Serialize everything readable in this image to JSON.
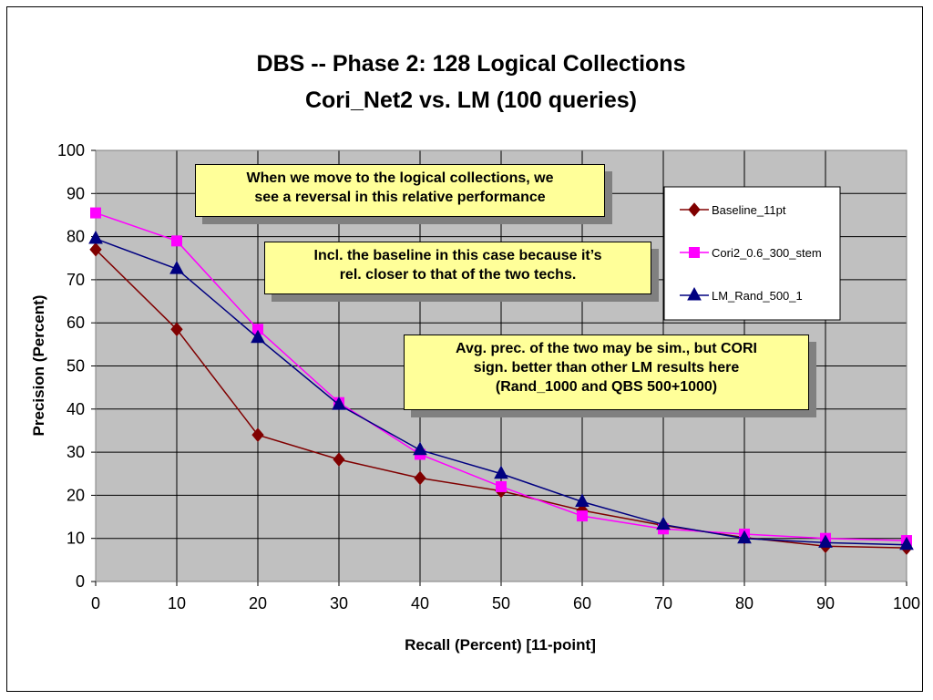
{
  "chart_data": {
    "type": "line",
    "title": [
      "DBS -- Phase 2: 128 Logical Collections",
      "Cori_Net2 vs. LM (100 queries)"
    ],
    "xlabel": "Recall  (Percent)  [11-point]",
    "ylabel": "Precision  (Percent)",
    "x": [
      0,
      10,
      20,
      30,
      40,
      50,
      60,
      70,
      80,
      90,
      100
    ],
    "xlim": [
      0,
      100
    ],
    "ylim": [
      0,
      100
    ],
    "xticks": [
      "0",
      "10",
      "20",
      "30",
      "40",
      "50",
      "60",
      "70",
      "80",
      "90",
      "100"
    ],
    "yticks": [
      "0",
      "10",
      "20",
      "30",
      "40",
      "50",
      "60",
      "70",
      "80",
      "90",
      "100"
    ],
    "grid": true,
    "legend_position": "right",
    "plot_background": "#c0c0c0",
    "series": [
      {
        "name": "Baseline_11pt",
        "color": "#800000",
        "marker": "diamond",
        "values": [
          77,
          58.5,
          34,
          28.3,
          24,
          21,
          16.5,
          13,
          10.2,
          8.2,
          7.8
        ]
      },
      {
        "name": "Cori2_0.6_300_stem",
        "color": "#ff00ff",
        "marker": "square",
        "values": [
          85.5,
          79,
          58.5,
          41.5,
          29.5,
          22,
          15.2,
          12.2,
          11,
          10,
          9.5
        ]
      },
      {
        "name": "LM_Rand_500_1",
        "color": "#000080",
        "marker": "triangle",
        "values": [
          79.5,
          72.5,
          56.5,
          41,
          30.5,
          25,
          18.5,
          13.2,
          10,
          9,
          8.5
        ]
      }
    ],
    "annotations": [
      {
        "lines": [
          "When we move to the logical collections, we",
          "see a reversal in this relative performance"
        ]
      },
      {
        "lines": [
          "Incl. the baseline in this case because it’s",
          "rel. closer to that of  the two techs."
        ]
      },
      {
        "lines": [
          "Avg. prec. of the two may be sim., but CORI",
          "sign. better than other LM results here",
          "(Rand_1000 and QBS 500+1000)"
        ]
      }
    ]
  }
}
